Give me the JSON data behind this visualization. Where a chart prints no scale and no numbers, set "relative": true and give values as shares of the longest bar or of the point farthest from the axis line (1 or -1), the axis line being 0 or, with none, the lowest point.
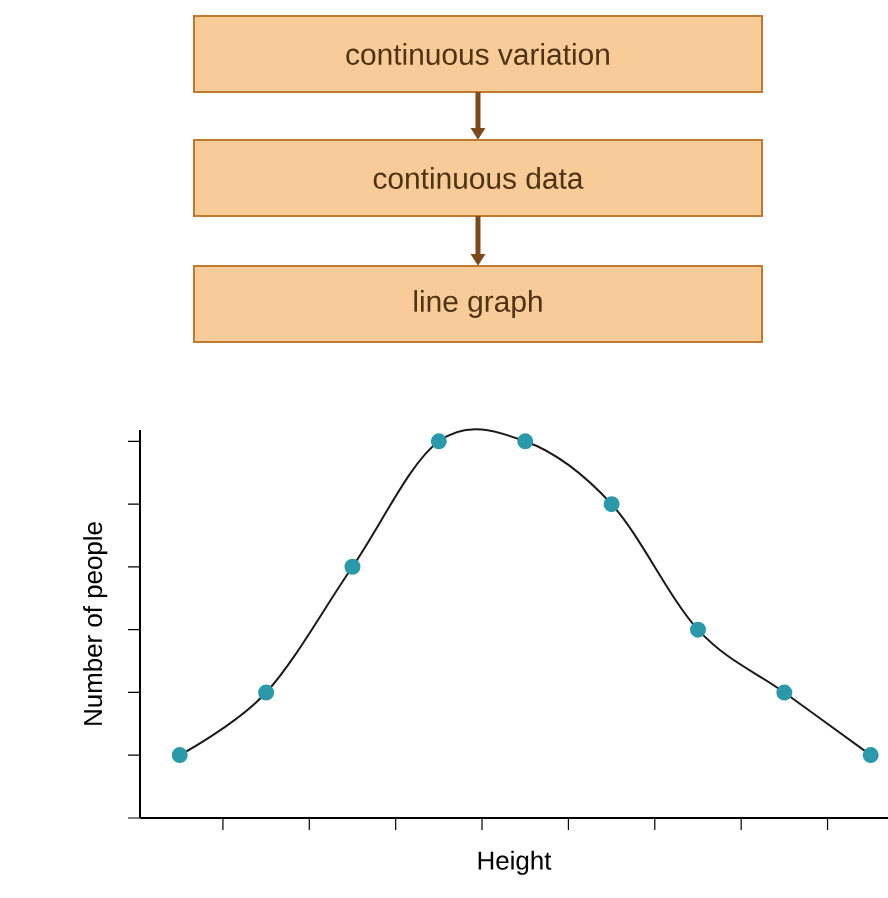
{
  "chart_data": {
    "type": "line",
    "relative": true,
    "xlabel": "Height",
    "ylabel": "Number of people",
    "marker": "circle",
    "categories": [
      null,
      null,
      null,
      null,
      null,
      null,
      null,
      null,
      null
    ],
    "annotations": [
      "continuous variation",
      "continuous data",
      "line graph"
    ],
    "series": [
      {
        "color": "#1a1a1a",
        "values": [
          0.167,
          0.333,
          0.667,
          1,
          1,
          0.833,
          0.5,
          0.333,
          0.167
        ]
      }
    ]
  }
}
